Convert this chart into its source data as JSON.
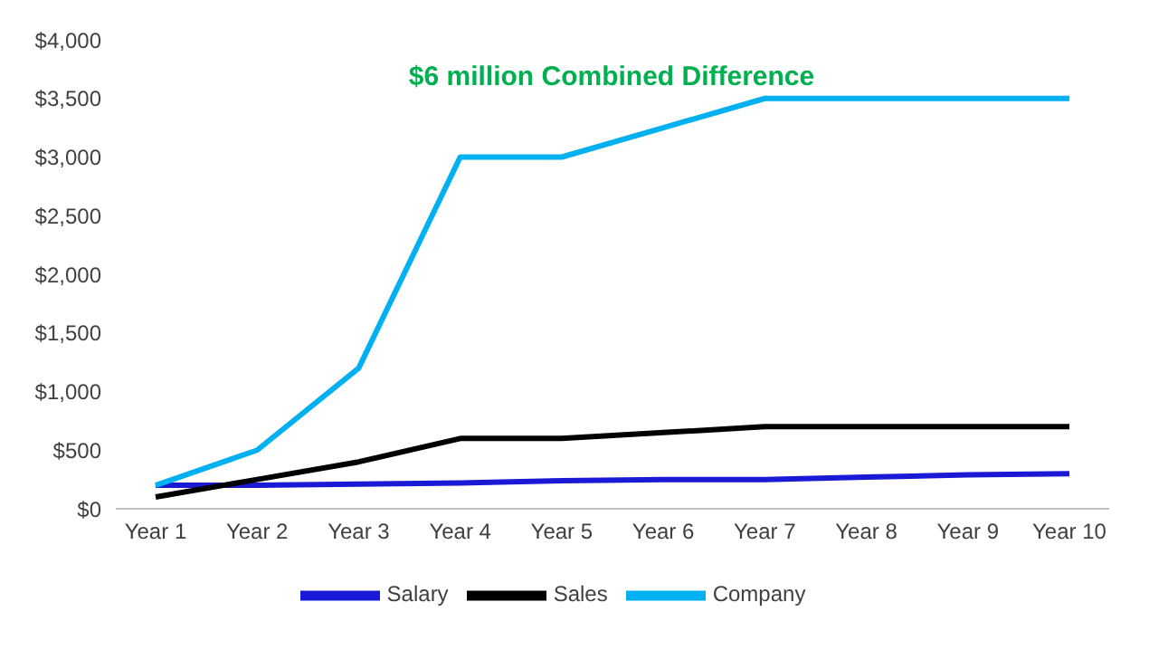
{
  "chart_data": {
    "type": "line",
    "title": "$6 million Combined Difference",
    "categories": [
      "Year 1",
      "Year 2",
      "Year 3",
      "Year 4",
      "Year 5",
      "Year 6",
      "Year 7",
      "Year 8",
      "Year 9",
      "Year 10"
    ],
    "series": [
      {
        "name": "Salary",
        "color": "#1a1ad6",
        "values": [
          200,
          200,
          210,
          220,
          240,
          250,
          250,
          270,
          290,
          300
        ]
      },
      {
        "name": "Sales",
        "color": "#000000",
        "values": [
          100,
          250,
          400,
          600,
          600,
          650,
          700,
          700,
          700,
          700
        ]
      },
      {
        "name": "Company",
        "color": "#00b0f0",
        "values": [
          200,
          500,
          1200,
          3000,
          3000,
          3250,
          3500,
          3500,
          3500,
          3500
        ]
      }
    ],
    "ylim": [
      0,
      4000
    ],
    "yticks": [
      {
        "value": 0,
        "label": "$0"
      },
      {
        "value": 500,
        "label": "$500"
      },
      {
        "value": 1000,
        "label": "$1,000"
      },
      {
        "value": 1500,
        "label": "$1,500"
      },
      {
        "value": 2000,
        "label": "$2,000"
      },
      {
        "value": 2500,
        "label": "$2,500"
      },
      {
        "value": 3000,
        "label": "$3,000"
      },
      {
        "value": 3500,
        "label": "$3,500"
      },
      {
        "value": 4000,
        "label": "$4,000"
      }
    ],
    "grid": false,
    "legend": "bottom",
    "marker": "none",
    "line_style": "solid"
  }
}
